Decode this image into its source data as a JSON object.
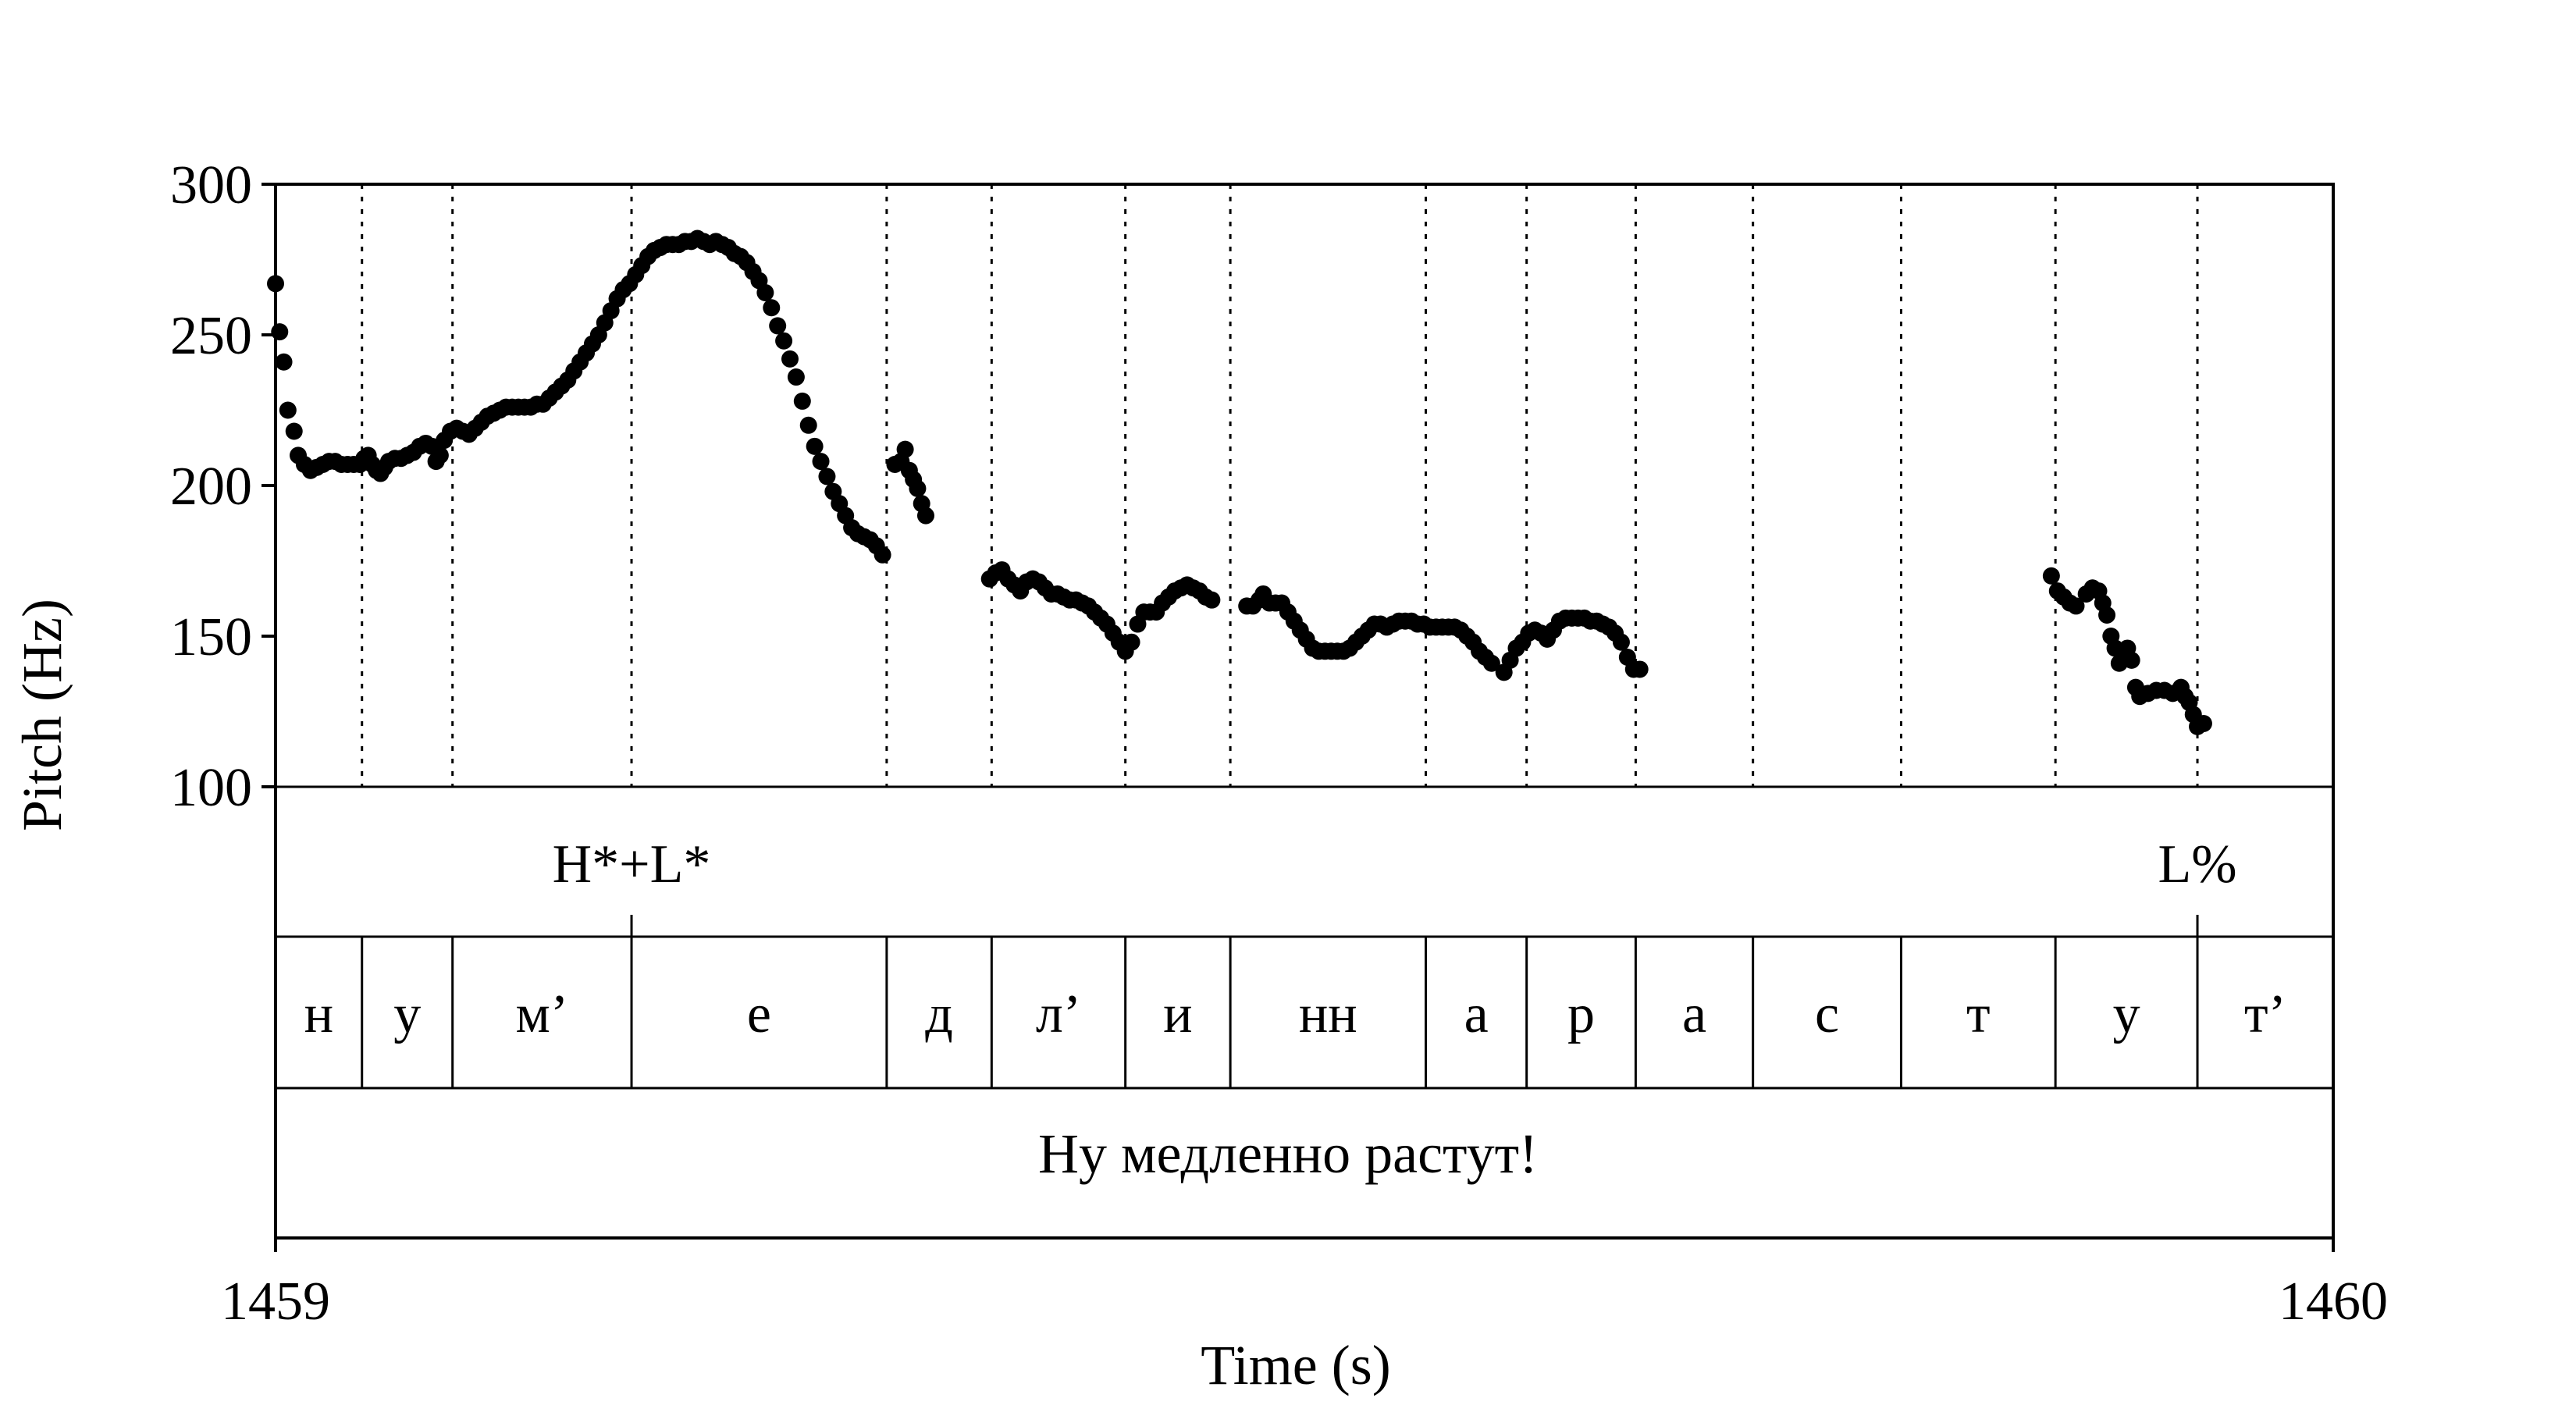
{
  "chart_data": {
    "type": "scatter",
    "xlabel": "Time (s)",
    "ylabel": "Pitch (Hz)",
    "xlim": [
      1459,
      1460
    ],
    "ylim": [
      100,
      300
    ],
    "x_ticks": [
      "1459",
      "1460"
    ],
    "y_ticks": [
      "100",
      "150",
      "200",
      "250",
      "300"
    ],
    "grid": "vertical dotted lines at segment boundaries",
    "boundaries": [
      1459.042,
      1459.086,
      1459.173,
      1459.297,
      1459.348,
      1459.413,
      1459.464,
      1459.559,
      1459.608,
      1459.661,
      1459.718,
      1459.79,
      1459.865,
      1459.934
    ],
    "tone_tier": [
      {
        "label": "H*+L*",
        "t": 1459.173
      },
      {
        "label": "L%",
        "t": 1459.934
      }
    ],
    "segments": [
      "н",
      "у",
      "м’",
      "е",
      "д",
      "л’",
      "и",
      "нн",
      "а",
      "р",
      "а",
      "с",
      "т",
      "у",
      "т’"
    ],
    "utterance": "Ну медленно растут!",
    "series": [
      {
        "points": [
          [
            1459.0,
            267
          ],
          [
            1459.002,
            251
          ],
          [
            1459.004,
            241
          ],
          [
            1459.006,
            225
          ],
          [
            1459.009,
            218
          ],
          [
            1459.011,
            210
          ],
          [
            1459.014,
            207
          ],
          [
            1459.017,
            205
          ],
          [
            1459.02,
            206
          ],
          [
            1459.023,
            207
          ],
          [
            1459.026,
            208
          ],
          [
            1459.029,
            208
          ],
          [
            1459.032,
            207
          ],
          [
            1459.035,
            207
          ],
          [
            1459.038,
            207
          ],
          [
            1459.041,
            207
          ],
          [
            1459.043,
            209
          ],
          [
            1459.045,
            210
          ],
          [
            1459.047,
            207
          ],
          [
            1459.049,
            205
          ],
          [
            1459.051,
            204
          ],
          [
            1459.053,
            206
          ],
          [
            1459.055,
            208
          ],
          [
            1459.058,
            209
          ],
          [
            1459.061,
            209
          ],
          [
            1459.064,
            210
          ],
          [
            1459.067,
            211
          ],
          [
            1459.07,
            213
          ],
          [
            1459.073,
            214
          ],
          [
            1459.076,
            213
          ],
          [
            1459.078,
            208
          ],
          [
            1459.08,
            210
          ],
          [
            1459.082,
            215
          ],
          [
            1459.085,
            218
          ],
          [
            1459.088,
            219
          ],
          [
            1459.091,
            218
          ],
          [
            1459.094,
            217
          ],
          [
            1459.097,
            219
          ],
          [
            1459.1,
            221
          ],
          [
            1459.103,
            223
          ],
          [
            1459.106,
            224
          ],
          [
            1459.109,
            225
          ],
          [
            1459.112,
            226
          ],
          [
            1459.115,
            226
          ],
          [
            1459.118,
            226
          ],
          [
            1459.121,
            226
          ],
          [
            1459.124,
            226
          ],
          [
            1459.127,
            227
          ],
          [
            1459.13,
            227
          ],
          [
            1459.133,
            229
          ],
          [
            1459.136,
            231
          ],
          [
            1459.139,
            233
          ],
          [
            1459.142,
            235
          ],
          [
            1459.145,
            238
          ],
          [
            1459.148,
            241
          ],
          [
            1459.151,
            244
          ],
          [
            1459.154,
            247
          ],
          [
            1459.157,
            250
          ],
          [
            1459.16,
            254
          ],
          [
            1459.163,
            258
          ],
          [
            1459.166,
            262
          ],
          [
            1459.169,
            265
          ],
          [
            1459.172,
            267
          ],
          [
            1459.175,
            270
          ],
          [
            1459.178,
            273
          ],
          [
            1459.181,
            276
          ],
          [
            1459.184,
            278
          ],
          [
            1459.187,
            279
          ],
          [
            1459.19,
            280
          ],
          [
            1459.193,
            280
          ],
          [
            1459.196,
            280
          ],
          [
            1459.199,
            281
          ],
          [
            1459.202,
            281
          ],
          [
            1459.205,
            282
          ],
          [
            1459.208,
            281
          ],
          [
            1459.211,
            280
          ],
          [
            1459.214,
            281
          ],
          [
            1459.217,
            280
          ],
          [
            1459.22,
            279
          ],
          [
            1459.223,
            277
          ],
          [
            1459.226,
            276
          ],
          [
            1459.229,
            274
          ],
          [
            1459.232,
            271
          ],
          [
            1459.235,
            268
          ],
          [
            1459.238,
            264
          ],
          [
            1459.241,
            259
          ],
          [
            1459.244,
            253
          ],
          [
            1459.247,
            248
          ],
          [
            1459.25,
            242
          ],
          [
            1459.253,
            236
          ],
          [
            1459.256,
            228
          ],
          [
            1459.259,
            220
          ],
          [
            1459.262,
            213
          ],
          [
            1459.265,
            208
          ],
          [
            1459.268,
            203
          ],
          [
            1459.271,
            198
          ],
          [
            1459.274,
            194
          ],
          [
            1459.277,
            190
          ],
          [
            1459.28,
            186
          ],
          [
            1459.283,
            184
          ],
          [
            1459.286,
            183
          ],
          [
            1459.289,
            182
          ],
          [
            1459.292,
            180
          ],
          [
            1459.295,
            177
          ],
          [
            1459.301,
            207
          ],
          [
            1459.304,
            208
          ],
          [
            1459.306,
            212
          ],
          [
            1459.308,
            205
          ],
          [
            1459.31,
            202
          ],
          [
            1459.312,
            199
          ],
          [
            1459.314,
            194
          ],
          [
            1459.316,
            190
          ],
          [
            1459.347,
            169
          ],
          [
            1459.35,
            171
          ],
          [
            1459.353,
            172
          ],
          [
            1459.356,
            169
          ],
          [
            1459.359,
            167
          ],
          [
            1459.362,
            165
          ],
          [
            1459.365,
            168
          ],
          [
            1459.368,
            169
          ],
          [
            1459.371,
            168
          ],
          [
            1459.374,
            166
          ],
          [
            1459.377,
            164
          ],
          [
            1459.38,
            164
          ],
          [
            1459.383,
            163
          ],
          [
            1459.386,
            162
          ],
          [
            1459.389,
            162
          ],
          [
            1459.392,
            161
          ],
          [
            1459.395,
            160
          ],
          [
            1459.398,
            158
          ],
          [
            1459.401,
            156
          ],
          [
            1459.404,
            154
          ],
          [
            1459.407,
            151
          ],
          [
            1459.41,
            148
          ],
          [
            1459.413,
            145
          ],
          [
            1459.416,
            148
          ],
          [
            1459.419,
            154
          ],
          [
            1459.422,
            158
          ],
          [
            1459.425,
            158
          ],
          [
            1459.428,
            158
          ],
          [
            1459.431,
            161
          ],
          [
            1459.434,
            163
          ],
          [
            1459.437,
            165
          ],
          [
            1459.44,
            166
          ],
          [
            1459.443,
            167
          ],
          [
            1459.446,
            166
          ],
          [
            1459.449,
            165
          ],
          [
            1459.452,
            163
          ],
          [
            1459.455,
            162
          ],
          [
            1459.472,
            160
          ],
          [
            1459.475,
            160
          ],
          [
            1459.478,
            162
          ],
          [
            1459.48,
            164
          ],
          [
            1459.483,
            161
          ],
          [
            1459.486,
            161
          ],
          [
            1459.489,
            161
          ],
          [
            1459.492,
            158
          ],
          [
            1459.495,
            155
          ],
          [
            1459.498,
            152
          ],
          [
            1459.501,
            149
          ],
          [
            1459.504,
            146
          ],
          [
            1459.507,
            145
          ],
          [
            1459.51,
            145
          ],
          [
            1459.513,
            145
          ],
          [
            1459.516,
            145
          ],
          [
            1459.519,
            145
          ],
          [
            1459.522,
            146
          ],
          [
            1459.525,
            148
          ],
          [
            1459.528,
            150
          ],
          [
            1459.531,
            152
          ],
          [
            1459.534,
            154
          ],
          [
            1459.537,
            154
          ],
          [
            1459.54,
            153
          ],
          [
            1459.543,
            154
          ],
          [
            1459.546,
            155
          ],
          [
            1459.549,
            155
          ],
          [
            1459.552,
            155
          ],
          [
            1459.555,
            154
          ],
          [
            1459.558,
            154
          ],
          [
            1459.561,
            153
          ],
          [
            1459.564,
            153
          ],
          [
            1459.567,
            153
          ],
          [
            1459.57,
            153
          ],
          [
            1459.573,
            153
          ],
          [
            1459.576,
            152
          ],
          [
            1459.579,
            150
          ],
          [
            1459.582,
            148
          ],
          [
            1459.585,
            145
          ],
          [
            1459.588,
            143
          ],
          [
            1459.591,
            141
          ],
          [
            1459.597,
            138
          ],
          [
            1459.6,
            142
          ],
          [
            1459.603,
            146
          ],
          [
            1459.606,
            148
          ],
          [
            1459.609,
            151
          ],
          [
            1459.612,
            152
          ],
          [
            1459.615,
            151
          ],
          [
            1459.618,
            149
          ],
          [
            1459.621,
            152
          ],
          [
            1459.624,
            155
          ],
          [
            1459.627,
            156
          ],
          [
            1459.63,
            156
          ],
          [
            1459.633,
            156
          ],
          [
            1459.636,
            156
          ],
          [
            1459.639,
            155
          ],
          [
            1459.642,
            155
          ],
          [
            1459.645,
            154
          ],
          [
            1459.648,
            153
          ],
          [
            1459.651,
            151
          ],
          [
            1459.654,
            148
          ],
          [
            1459.657,
            143
          ],
          [
            1459.66,
            139
          ],
          [
            1459.663,
            139
          ],
          [
            1459.863,
            170
          ],
          [
            1459.866,
            165
          ],
          [
            1459.869,
            163
          ],
          [
            1459.872,
            161
          ],
          [
            1459.875,
            160
          ],
          [
            1459.88,
            164
          ],
          [
            1459.883,
            166
          ],
          [
            1459.886,
            165
          ],
          [
            1459.888,
            161
          ],
          [
            1459.89,
            157
          ],
          [
            1459.892,
            150
          ],
          [
            1459.894,
            146
          ],
          [
            1459.896,
            141
          ],
          [
            1459.898,
            144
          ],
          [
            1459.9,
            146
          ],
          [
            1459.902,
            142
          ],
          [
            1459.904,
            133
          ],
          [
            1459.906,
            130
          ],
          [
            1459.91,
            131
          ],
          [
            1459.914,
            132
          ],
          [
            1459.918,
            132
          ],
          [
            1459.922,
            131
          ],
          [
            1459.926,
            133
          ],
          [
            1459.928,
            130
          ],
          [
            1459.93,
            128
          ],
          [
            1459.932,
            124
          ],
          [
            1459.934,
            120
          ],
          [
            1459.937,
            121
          ]
        ]
      }
    ]
  }
}
